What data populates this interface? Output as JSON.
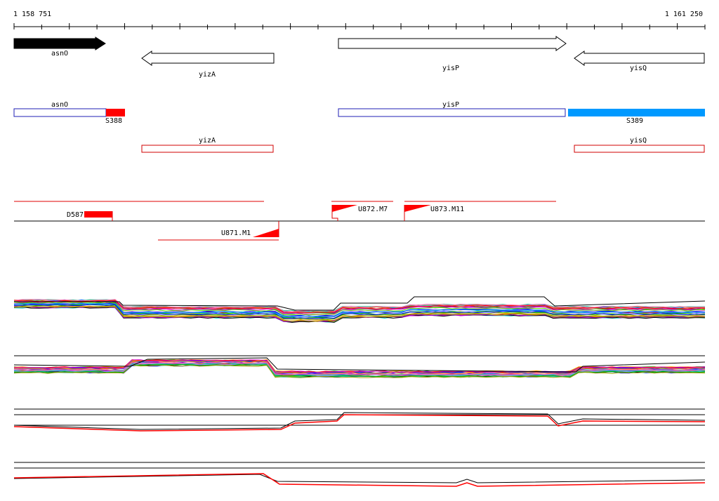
{
  "ruler": {
    "start_label": "1 158 751",
    "end_label": "1 161 250",
    "start": 1158751,
    "end": 1161250
  },
  "genes": [
    {
      "name": "asnO",
      "strand": "+",
      "filled": true
    },
    {
      "name": "yizA",
      "strand": "-",
      "filled": false
    },
    {
      "name": "yisP",
      "strand": "+",
      "filled": false
    },
    {
      "name": "yisQ",
      "strand": "-",
      "filled": false
    }
  ],
  "transcripts": [
    {
      "name": "asnO",
      "color": "#1f1fb4",
      "segment_label": "S388",
      "segment_color": "#ff0000"
    },
    {
      "name": "yisP",
      "color": "#1f1fb4",
      "segment_label": "S389",
      "segment_color": "#0099ff"
    },
    {
      "name": "yizA",
      "color": "#d00000"
    },
    {
      "name": "yisQ",
      "color": "#d00000"
    }
  ],
  "features": [
    {
      "label": "D587",
      "color": "#ff0000"
    },
    {
      "label": "U871.M1",
      "color": "#ff0000"
    },
    {
      "label": "U872.M7",
      "color": "#ff0000"
    },
    {
      "label": "U873.M11",
      "color": "#ff0000"
    }
  ],
  "colors": {
    "profile_palette": [
      "#ff0000",
      "#00aa00",
      "#0000ff",
      "#ff9900",
      "#9900cc",
      "#00cccc",
      "#cc00cc",
      "#999900",
      "#ff66aa",
      "#66cc00",
      "#0066ff",
      "#000000",
      "#cc6600",
      "#33cc99",
      "#aa88ff"
    ],
    "condition_a": "#000000",
    "condition_b": "#ff0000"
  }
}
